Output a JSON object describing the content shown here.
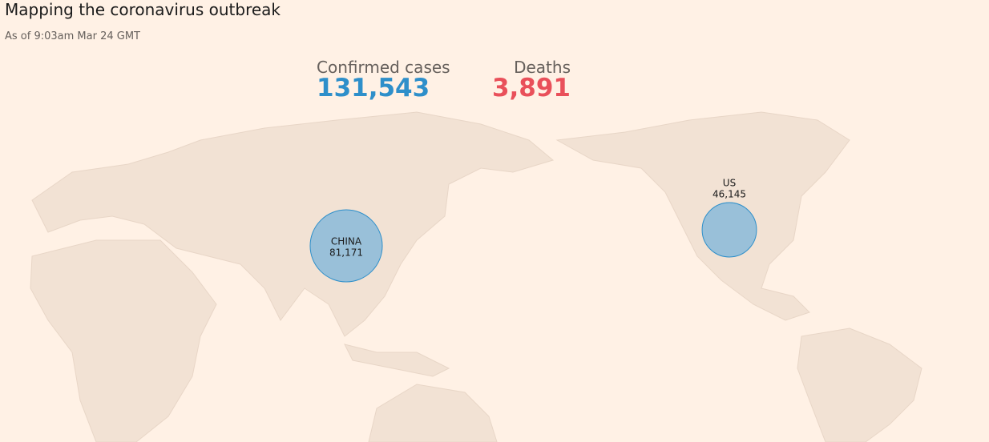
{
  "header": {
    "title": "Mapping the coronavirus outbreak",
    "subtitle": "As of 9:03am Mar 24 GMT"
  },
  "stats": [
    {
      "label": "Confirmed cases",
      "value": "131,543",
      "color": "#2e8fca"
    },
    {
      "label": "Deaths",
      "value": "3,891",
      "color": "#e9505a"
    }
  ],
  "bubbles": [
    {
      "name": "CHINA",
      "value": 81171,
      "label": "81,171"
    },
    {
      "name": "US",
      "value": 46145,
      "label": "46,145"
    }
  ]
}
